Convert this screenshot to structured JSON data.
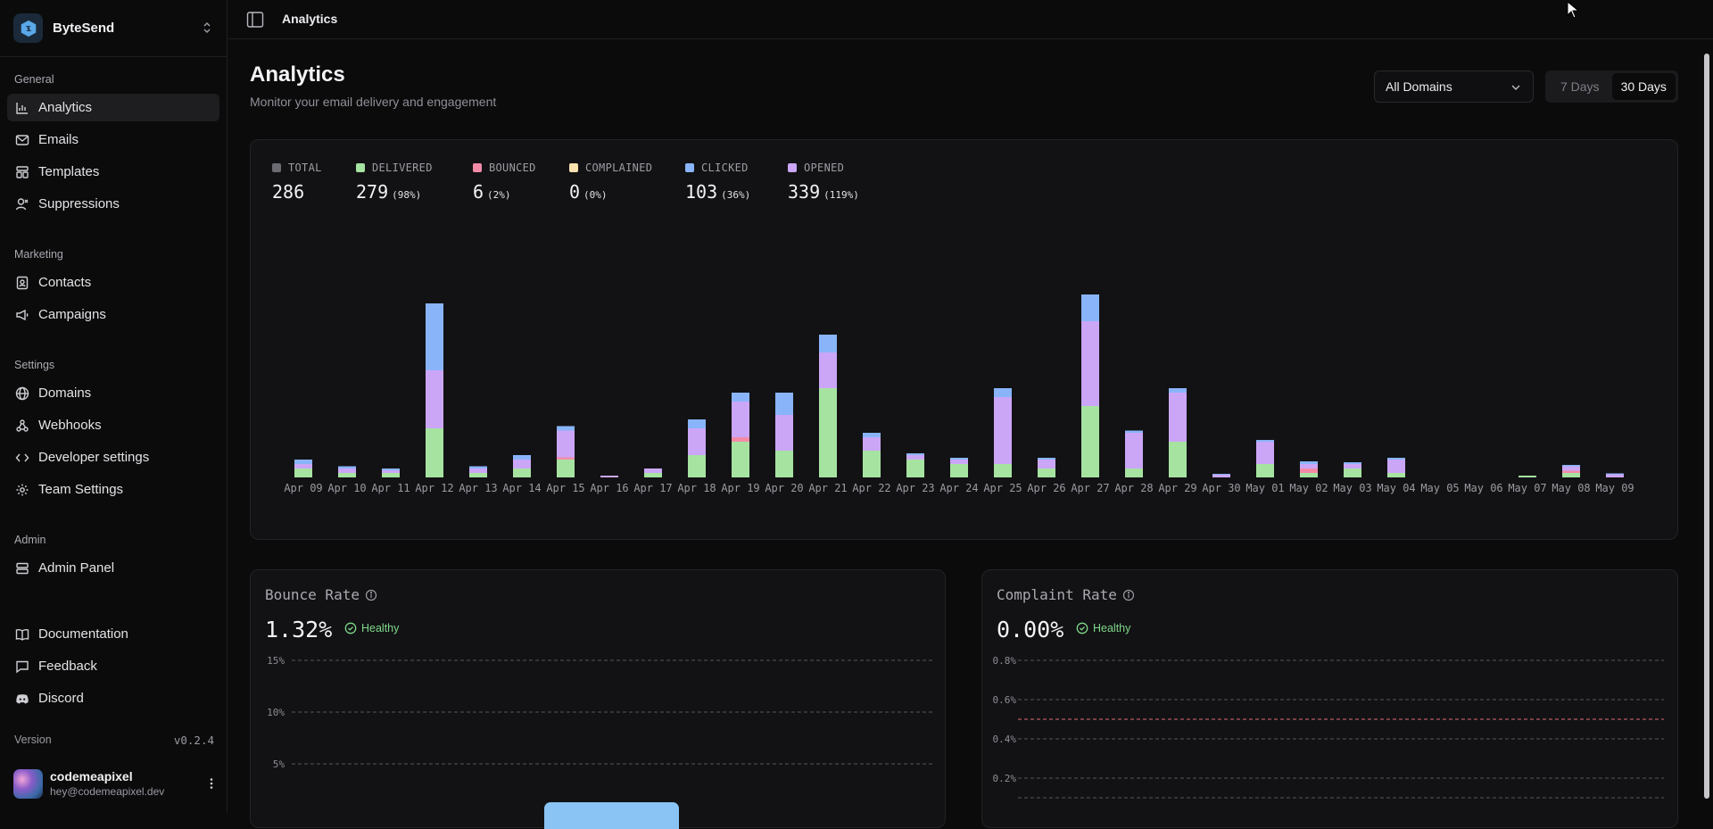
{
  "brand": {
    "name": "ByteSend"
  },
  "sidebar": {
    "sections": [
      {
        "label": "General",
        "items": [
          {
            "label": "Analytics",
            "icon": "chart-bar-icon",
            "active": true
          },
          {
            "label": "Emails",
            "icon": "mail-icon"
          },
          {
            "label": "Templates",
            "icon": "layout-icon"
          },
          {
            "label": "Suppressions",
            "icon": "user-x-icon"
          }
        ]
      },
      {
        "label": "Marketing",
        "items": [
          {
            "label": "Contacts",
            "icon": "contact-icon"
          },
          {
            "label": "Campaigns",
            "icon": "megaphone-icon"
          }
        ]
      },
      {
        "label": "Settings",
        "items": [
          {
            "label": "Domains",
            "icon": "globe-icon"
          },
          {
            "label": "Webhooks",
            "icon": "webhook-icon"
          },
          {
            "label": "Developer settings",
            "icon": "code-icon"
          },
          {
            "label": "Team Settings",
            "icon": "gear-icon"
          }
        ]
      },
      {
        "label": "Admin",
        "items": [
          {
            "label": "Admin Panel",
            "icon": "server-icon"
          }
        ]
      }
    ],
    "footer_items": [
      {
        "label": "Documentation",
        "icon": "book-icon"
      },
      {
        "label": "Feedback",
        "icon": "message-icon"
      },
      {
        "label": "Discord",
        "icon": "discord-icon"
      }
    ],
    "version_label": "Version",
    "version": "v0.2.4",
    "user": {
      "name": "codemeapixel",
      "email": "hey@codemeapixel.dev"
    }
  },
  "topbar": {
    "breadcrumb": "Analytics"
  },
  "header": {
    "title": "Analytics",
    "subtitle": "Monitor your email delivery and engagement"
  },
  "filters": {
    "domain": "All Domains",
    "ranges": [
      "7 Days",
      "30 Days"
    ],
    "selected_range": "30 Days"
  },
  "colors": {
    "total": "#6b6b73",
    "delivered": "#a6e3a1",
    "bounced": "#f38ba8",
    "complained": "#f9e2af",
    "clicked": "#89b4fa",
    "opened": "#cba6f7",
    "healthy": "#7fd88a",
    "complaint_threshold": "#e06c75"
  },
  "stats": [
    {
      "key": "total",
      "label": "TOTAL",
      "value": "286",
      "pct": ""
    },
    {
      "key": "delivered",
      "label": "DELIVERED",
      "value": "279",
      "pct": "(98%)"
    },
    {
      "key": "bounced",
      "label": "BOUNCED",
      "value": "6",
      "pct": "(2%)"
    },
    {
      "key": "complained",
      "label": "COMPLAINED",
      "value": "0",
      "pct": "(0%)"
    },
    {
      "key": "clicked",
      "label": "CLICKED",
      "value": "103",
      "pct": "(36%)"
    },
    {
      "key": "opened",
      "label": "OPENED",
      "value": "339",
      "pct": "(119%)"
    }
  ],
  "chart_data": [
    {
      "type": "bar",
      "stacked": true,
      "categories": [
        "Apr 09",
        "Apr 10",
        "Apr 11",
        "Apr 12",
        "Apr 13",
        "Apr 14",
        "Apr 15",
        "Apr 16",
        "Apr 17",
        "Apr 18",
        "Apr 19",
        "Apr 20",
        "Apr 21",
        "Apr 22",
        "Apr 23",
        "Apr 24",
        "Apr 25",
        "Apr 26",
        "Apr 27",
        "Apr 28",
        "Apr 29",
        "Apr 30",
        "May 01",
        "May 02",
        "May 03",
        "May 04",
        "May 05",
        "May 06",
        "May 07",
        "May 08",
        "May 09"
      ],
      "series": [
        {
          "key": "delivered",
          "values": [
            2,
            1,
            1,
            11,
            1,
            2,
            4,
            0,
            1,
            5,
            8,
            6,
            20,
            6,
            4,
            3,
            3,
            2,
            16,
            2,
            8,
            0,
            3,
            1,
            2,
            1,
            0,
            0,
            0.4,
            1,
            0
          ]
        },
        {
          "key": "bounced",
          "values": [
            0,
            0,
            0,
            0,
            0,
            0,
            0.5,
            0,
            0,
            0,
            1,
            0,
            0,
            0,
            0,
            0,
            0,
            0,
            0,
            0,
            0,
            0,
            0,
            1,
            0,
            0,
            0,
            0,
            0,
            0.5,
            0
          ]
        },
        {
          "key": "opened",
          "values": [
            1,
            1,
            0.6,
            13,
            1,
            2,
            6,
            0.4,
            1,
            6,
            8,
            8,
            8,
            3,
            1,
            1,
            15,
            2,
            19,
            8,
            11,
            0.6,
            5,
            1,
            1,
            3,
            0,
            0,
            0,
            1,
            0.7
          ]
        },
        {
          "key": "clicked",
          "values": [
            1,
            0.5,
            0.4,
            15,
            0.5,
            1,
            1,
            0,
            0,
            2,
            2,
            5,
            4,
            1,
            0.4,
            0.4,
            2,
            0.4,
            6,
            0.5,
            1,
            0.2,
            0.4,
            0.6,
            0.4,
            0.4,
            0,
            0,
            0,
            0.3,
            0.2
          ]
        }
      ]
    },
    {
      "type": "bar",
      "title": "Bounce Rate",
      "value_label": "1.32%",
      "status": "Healthy",
      "y_ticks": [
        "15%",
        "10%",
        "5%"
      ]
    },
    {
      "type": "bar",
      "title": "Complaint Rate",
      "value_label": "0.00%",
      "status": "Healthy",
      "y_ticks": [
        "0.8%",
        "0.6%",
        "0.4%",
        "0.2%"
      ]
    }
  ]
}
